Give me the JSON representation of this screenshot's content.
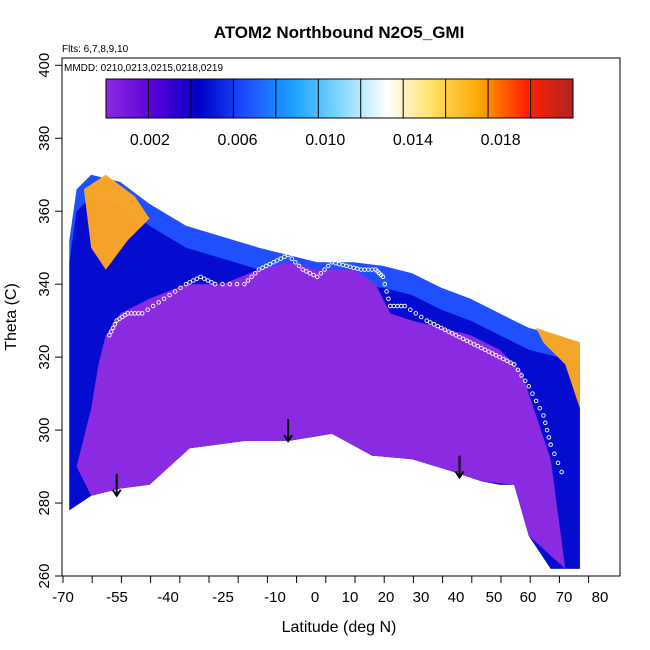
{
  "chart_data": {
    "type": "heatmap",
    "title": "ATOM2 Northbound N2O5_GMI",
    "annotations": {
      "flights": "Flts: 6,7,8,9,10",
      "dates": "MMDD: 0210,0213,0215,0218,0219"
    },
    "xlabel": "Latitude (deg N)",
    "ylabel": "Theta (C)",
    "xlim": [
      -70,
      83
    ],
    "ylim": [
      260,
      402
    ],
    "x_tick_labels": [
      "-70",
      "-55",
      "-40",
      "-25",
      "-10",
      "0",
      "10",
      "20",
      "30",
      "40",
      "50",
      "60",
      "70",
      "80"
    ],
    "y_ticks": [
      260,
      280,
      300,
      320,
      340,
      360,
      380,
      400
    ],
    "colorbar": {
      "min": 0.0,
      "max": 0.0213,
      "tick_labels": [
        "0.002",
        "0.006",
        "0.010",
        "0.014",
        "0.018"
      ],
      "tick_values": [
        0.002,
        0.006,
        0.01,
        0.014,
        0.018
      ],
      "stops": [
        "#8a2be2",
        "#5a00d8",
        "#0000c8",
        "#1f4fff",
        "#1aa0ff",
        "#7fd8ff",
        "#ffffff",
        "#ffe066",
        "#ffa500",
        "#ff2200",
        "#b22222"
      ]
    },
    "field": {
      "upper_boundary": [
        [
          -68,
          352
        ],
        [
          -66,
          366
        ],
        [
          -62,
          370
        ],
        [
          -54,
          368
        ],
        [
          -46,
          362
        ],
        [
          -36,
          356
        ],
        [
          -26,
          353
        ],
        [
          -16,
          350
        ],
        [
          -8,
          348
        ],
        [
          0,
          346
        ],
        [
          10,
          346
        ],
        [
          18,
          345
        ],
        [
          26,
          343
        ],
        [
          34,
          339
        ],
        [
          42,
          336
        ],
        [
          50,
          332
        ],
        [
          58,
          328
        ],
        [
          66,
          326
        ],
        [
          72,
          324
        ]
      ],
      "lower_boundary": [
        [
          -68,
          278
        ],
        [
          -62,
          282
        ],
        [
          -54,
          284
        ],
        [
          -46,
          285
        ],
        [
          -35,
          295
        ],
        [
          -20,
          297
        ],
        [
          -8,
          297
        ],
        [
          4,
          299
        ],
        [
          15,
          293
        ],
        [
          26,
          292
        ],
        [
          36,
          289
        ],
        [
          45,
          286
        ],
        [
          50,
          285
        ],
        [
          54,
          285
        ],
        [
          58,
          271
        ],
        [
          64,
          262
        ],
        [
          72,
          262
        ]
      ],
      "high_value_regions": [
        {
          "name": "southern-high",
          "value": 0.016,
          "points": [
            [
              -64,
              366
            ],
            [
              -58,
              370
            ],
            [
              -50,
              364
            ],
            [
              -46,
              358
            ],
            [
              -52,
              352
            ],
            [
              -58,
              344
            ],
            [
              -62,
              350
            ]
          ]
        },
        {
          "name": "northern-high",
          "value": 0.018,
          "points": [
            [
              60,
              328
            ],
            [
              66,
              326
            ],
            [
              72,
              324
            ],
            [
              72,
              306
            ],
            [
              68,
              318
            ],
            [
              62,
              324
            ]
          ]
        }
      ],
      "low_value_core": {
        "value": 0.0005,
        "points": [
          [
            -58,
            326
          ],
          [
            -54,
            332
          ],
          [
            -46,
            336
          ],
          [
            -36,
            340
          ],
          [
            -26,
            340
          ],
          [
            -16,
            344
          ],
          [
            -8,
            346
          ],
          [
            0,
            344
          ],
          [
            10,
            344
          ],
          [
            16,
            340
          ],
          [
            20,
            332
          ],
          [
            26,
            330
          ],
          [
            34,
            328
          ],
          [
            42,
            326
          ],
          [
            50,
            322
          ],
          [
            56,
            316
          ],
          [
            60,
            304
          ],
          [
            64,
            292
          ],
          [
            68,
            262
          ],
          [
            58,
            271
          ],
          [
            54,
            285
          ],
          [
            45,
            286
          ],
          [
            36,
            289
          ],
          [
            26,
            292
          ],
          [
            15,
            293
          ],
          [
            4,
            299
          ],
          [
            -8,
            297
          ],
          [
            -20,
            297
          ],
          [
            -35,
            295
          ],
          [
            -46,
            285
          ],
          [
            -54,
            284
          ],
          [
            -62,
            282
          ],
          [
            -66,
            290
          ],
          [
            -62,
            306
          ],
          [
            -60,
            318
          ]
        ]
      }
    },
    "flight_track": [
      [
        -57,
        326
      ],
      [
        -55,
        330
      ],
      [
        -52,
        332
      ],
      [
        -48,
        332
      ],
      [
        -42,
        336
      ],
      [
        -36,
        340
      ],
      [
        -32,
        342
      ],
      [
        -28,
        340
      ],
      [
        -20,
        340
      ],
      [
        -16,
        344
      ],
      [
        -12,
        346
      ],
      [
        -8,
        348
      ],
      [
        -4,
        344
      ],
      [
        0,
        342
      ],
      [
        4,
        346
      ],
      [
        8,
        345
      ],
      [
        12,
        344
      ],
      [
        16,
        344
      ],
      [
        18,
        342
      ],
      [
        20,
        334
      ],
      [
        24,
        334
      ],
      [
        30,
        330
      ],
      [
        34,
        328
      ],
      [
        38,
        326
      ],
      [
        42,
        324
      ],
      [
        46,
        322
      ],
      [
        50,
        320
      ],
      [
        54,
        318
      ],
      [
        58,
        312
      ],
      [
        62,
        304
      ],
      [
        64,
        296
      ],
      [
        68,
        286
      ]
    ],
    "arrows": [
      [
        -55,
        288
      ],
      [
        -8,
        303
      ],
      [
        39,
        293
      ]
    ]
  }
}
